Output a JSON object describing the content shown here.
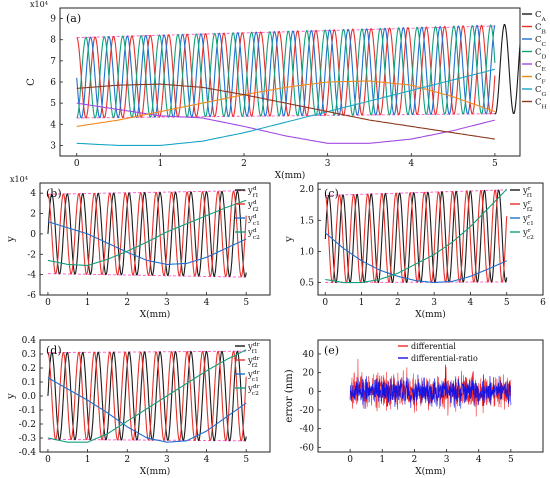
{
  "figure": {
    "type": "composite"
  },
  "colors": {
    "black": "#1a1a1a",
    "red": "#e8302a",
    "blue": "#1f6fd0",
    "green": "#12a07c",
    "purple": "#a24be0",
    "orange": "#f08a1c",
    "cyan": "#1aa6c8",
    "brown": "#8b3b1f",
    "envelope": "#ff66cc",
    "errBlue": "#1414e6",
    "errRed": "#f02a2a"
  },
  "chart_data": [
    {
      "id": "a",
      "type": "line",
      "panel_label": "(a)",
      "xlabel": "X(mm)",
      "ylabel": "C",
      "exponent": "x10⁴",
      "xlim": [
        -0.2,
        5.3
      ],
      "ylim": [
        2.5,
        9.5
      ],
      "xticks": [
        0,
        1,
        2,
        3,
        4,
        5
      ],
      "yticks": [
        3,
        4,
        5,
        6,
        7,
        8,
        9
      ],
      "series": [
        {
          "name": "C_A",
          "color": "black",
          "kind": "sine",
          "start": 5.4,
          "period": 0.22,
          "phase": 0.0,
          "mid_start": 6.2,
          "mid_end": 6.6,
          "amp_start": 1.9,
          "amp_end": 2.1
        },
        {
          "name": "C_B",
          "color": "red",
          "kind": "sine",
          "start": 0,
          "period": 0.22,
          "phase": 0.25,
          "mid_start": 6.2,
          "mid_end": 6.6,
          "amp_start": 1.9,
          "amp_end": 2.1
        },
        {
          "name": "C_C",
          "color": "blue",
          "kind": "sine",
          "start": 0,
          "period": 0.22,
          "phase": 0.5,
          "mid_start": 6.2,
          "mid_end": 6.6,
          "amp_start": 1.9,
          "amp_end": 2.1
        },
        {
          "name": "C_D",
          "color": "green",
          "kind": "sine",
          "start": 0,
          "period": 0.22,
          "phase": 0.75,
          "mid_start": 6.2,
          "mid_end": 6.6,
          "amp_start": 1.9,
          "amp_end": 2.1
        },
        {
          "name": "C_E",
          "color": "purple",
          "kind": "path",
          "x": [
            0,
            0.5,
            1,
            1.5,
            2,
            2.5,
            3,
            3.5,
            4,
            4.5,
            5
          ],
          "y": [
            5.0,
            4.7,
            4.4,
            4.3,
            3.9,
            3.45,
            3.1,
            3.1,
            3.3,
            3.7,
            4.2
          ]
        },
        {
          "name": "C_F",
          "color": "orange",
          "kind": "path",
          "x": [
            0,
            0.5,
            1,
            1.5,
            2,
            2.5,
            3,
            3.5,
            4,
            4.5,
            5
          ],
          "y": [
            3.9,
            4.2,
            4.6,
            5.0,
            5.4,
            5.75,
            6.0,
            6.05,
            5.85,
            5.3,
            4.6
          ]
        },
        {
          "name": "C_G",
          "color": "cyan",
          "kind": "path",
          "x": [
            0,
            0.5,
            1,
            1.5,
            2,
            2.5,
            3,
            3.5,
            4,
            4.5,
            5
          ],
          "y": [
            3.1,
            3.0,
            3.0,
            3.2,
            3.6,
            4.1,
            4.6,
            5.1,
            5.6,
            6.1,
            6.6
          ]
        },
        {
          "name": "C_H",
          "color": "brown",
          "kind": "path",
          "x": [
            0,
            0.5,
            1,
            1.5,
            2,
            2.5,
            3,
            3.5,
            4,
            4.5,
            5
          ],
          "y": [
            5.7,
            5.85,
            5.9,
            5.75,
            5.4,
            5.0,
            4.6,
            4.2,
            3.9,
            3.6,
            3.3
          ]
        }
      ],
      "legend": [
        "C_A",
        "C_B",
        "C_C",
        "C_D",
        "C_E",
        "C_F",
        "C_G",
        "C_H"
      ],
      "envelope": {
        "top": [
          8.1,
          8.65
        ],
        "bottom": [
          4.3,
          4.5
        ]
      }
    },
    {
      "id": "b",
      "type": "line",
      "panel_label": "(b)",
      "xlabel": "X(mm)",
      "ylabel": "y",
      "exponent": "x10⁴",
      "xlim": [
        -0.2,
        5.6
      ],
      "ylim": [
        -6,
        5
      ],
      "xticks": [
        0,
        1,
        2,
        3,
        4,
        5
      ],
      "yticks": [
        -6,
        -4,
        -2,
        0,
        2,
        4
      ],
      "series": [
        {
          "name": "y^d_f1",
          "color": "black",
          "kind": "sine",
          "start": 0,
          "period": 0.39,
          "phase": 0.0,
          "mid_start": 0,
          "mid_end": 0,
          "amp_start": 3.9,
          "amp_end": 4.2
        },
        {
          "name": "y^d_f2",
          "color": "red",
          "kind": "sine",
          "start": 0,
          "period": 0.39,
          "phase": 0.25,
          "mid_start": 0,
          "mid_end": 0,
          "amp_start": 3.9,
          "amp_end": 4.2
        },
        {
          "name": "y^d_c1",
          "color": "blue",
          "kind": "path",
          "x": [
            0,
            0.5,
            1,
            1.5,
            2,
            2.5,
            3,
            3.5,
            4,
            4.5,
            5
          ],
          "y": [
            1.2,
            0.6,
            0.0,
            -0.9,
            -1.8,
            -2.6,
            -3.0,
            -2.9,
            -2.3,
            -1.4,
            -0.5
          ]
        },
        {
          "name": "y^d_c2",
          "color": "green",
          "kind": "path",
          "x": [
            0,
            0.5,
            1,
            1.5,
            2,
            2.5,
            3,
            3.5,
            4,
            4.5,
            5
          ],
          "y": [
            -2.6,
            -3.0,
            -3.1,
            -2.5,
            -1.7,
            -0.8,
            0.2,
            1.0,
            1.8,
            2.6,
            3.3
          ]
        }
      ],
      "legend": [
        "y^d_f1",
        "y^d_f2",
        "y^d_c1",
        "y^d_c2"
      ],
      "envelope": {
        "top": [
          3.9,
          4.25
        ],
        "bottom": [
          -3.9,
          -4.25
        ]
      }
    },
    {
      "id": "c",
      "type": "line",
      "panel_label": "(c)",
      "xlabel": "X(mm)",
      "ylabel": "y",
      "xlim": [
        -0.2,
        6
      ],
      "ylim": [
        0.3,
        2.1
      ],
      "xticks": [
        0,
        1,
        2,
        3,
        4,
        5,
        6
      ],
      "yticks": [
        0.5,
        1.0,
        1.5,
        2.0
      ],
      "yticklabels": [
        "0.5",
        "1.0",
        "1.5",
        "2.0"
      ],
      "series": [
        {
          "name": "y^r_f1",
          "color": "black",
          "kind": "sine",
          "start": 0,
          "period": 0.39,
          "phase": 0.0,
          "mid_start": 1.2,
          "mid_end": 1.25,
          "amp_start": 0.7,
          "amp_end": 0.74
        },
        {
          "name": "y^r_f2",
          "color": "red",
          "kind": "sine",
          "start": 0,
          "period": 0.39,
          "phase": 0.25,
          "mid_start": 1.2,
          "mid_end": 1.25,
          "amp_start": 0.7,
          "amp_end": 0.74
        },
        {
          "name": "y^r_c1",
          "color": "blue",
          "kind": "path",
          "x": [
            0,
            0.5,
            1,
            1.5,
            2,
            2.5,
            3,
            3.5,
            4,
            4.5,
            5
          ],
          "y": [
            1.3,
            1.05,
            0.85,
            0.7,
            0.6,
            0.53,
            0.5,
            0.52,
            0.6,
            0.72,
            0.85
          ]
        },
        {
          "name": "y^r_c2",
          "color": "green",
          "kind": "path",
          "x": [
            0,
            0.5,
            1,
            1.5,
            2,
            2.5,
            3,
            3.5,
            4,
            4.5,
            5
          ],
          "y": [
            0.55,
            0.5,
            0.5,
            0.55,
            0.65,
            0.8,
            0.95,
            1.15,
            1.4,
            1.7,
            2.0
          ]
        }
      ],
      "legend": [
        "y^r_f1",
        "y^r_f2",
        "y^r_c1",
        "y^r_c2"
      ],
      "envelope": {
        "top": [
          1.9,
          1.99
        ],
        "bottom": [
          0.5,
          0.51
        ]
      }
    },
    {
      "id": "d",
      "type": "line",
      "panel_label": "(d)",
      "xlabel": "X(mm)",
      "ylabel": "y",
      "xlim": [
        -0.2,
        5.6
      ],
      "ylim": [
        -0.4,
        0.4
      ],
      "xticks": [
        0,
        1,
        2,
        3,
        4,
        5
      ],
      "yticks": [
        -0.4,
        -0.3,
        -0.2,
        -0.1,
        0.0,
        0.1,
        0.2,
        0.3,
        0.4
      ],
      "yticklabels": [
        "-0.4",
        "-0.3",
        "-0.2",
        "-0.1",
        "0.0",
        "0.1",
        "0.2",
        "0.3",
        "0.4"
      ],
      "series": [
        {
          "name": "y^dr_f1",
          "color": "black",
          "kind": "sine",
          "start": 0,
          "period": 0.39,
          "phase": 0.0,
          "mid_start": 0,
          "mid_end": 0,
          "amp_start": 0.31,
          "amp_end": 0.32
        },
        {
          "name": "y^dr_f2",
          "color": "red",
          "kind": "sine",
          "start": 0,
          "period": 0.39,
          "phase": 0.25,
          "mid_start": 0,
          "mid_end": 0,
          "amp_start": 0.31,
          "amp_end": 0.32
        },
        {
          "name": "y^dr_c1",
          "color": "blue",
          "kind": "path",
          "x": [
            0,
            0.5,
            1,
            1.5,
            2,
            2.5,
            3,
            3.5,
            4,
            4.5,
            5
          ],
          "y": [
            0.13,
            0.05,
            -0.03,
            -0.12,
            -0.22,
            -0.3,
            -0.33,
            -0.32,
            -0.25,
            -0.15,
            -0.05
          ]
        },
        {
          "name": "y^dr_c2",
          "color": "green",
          "kind": "path",
          "x": [
            0,
            0.5,
            1,
            1.5,
            2,
            2.5,
            3,
            3.5,
            4,
            4.5,
            5
          ],
          "y": [
            -0.3,
            -0.33,
            -0.33,
            -0.27,
            -0.18,
            -0.09,
            0.0,
            0.09,
            0.18,
            0.26,
            0.33
          ]
        }
      ],
      "legend": [
        "y^dr_f1",
        "y^dr_f2",
        "y^dr_c1",
        "y^dr_c2"
      ],
      "envelope": {
        "top": [
          0.31,
          0.32
        ],
        "bottom": [
          -0.31,
          -0.32
        ]
      }
    },
    {
      "id": "e",
      "type": "line",
      "panel_label": "(e)",
      "xlabel": "X(mm)",
      "ylabel": "error (nm)",
      "xlim": [
        -1,
        6
      ],
      "ylim": [
        -65,
        55
      ],
      "xticks": [
        0,
        1,
        2,
        3,
        4,
        5
      ],
      "yticks": [
        -60,
        -40,
        -20,
        0,
        20,
        40
      ],
      "series": [
        {
          "name": "differential",
          "color": "errRed",
          "kind": "noise",
          "seed": 7,
          "n": 700,
          "sigma": 12,
          "x0": 0,
          "x1": 5
        },
        {
          "name": "differential-ratio",
          "color": "errBlue",
          "kind": "noise",
          "seed": 19,
          "n": 700,
          "sigma": 9,
          "x0": 0,
          "x1": 5
        }
      ],
      "legend": [
        "differential",
        "differential-ratio"
      ]
    }
  ]
}
